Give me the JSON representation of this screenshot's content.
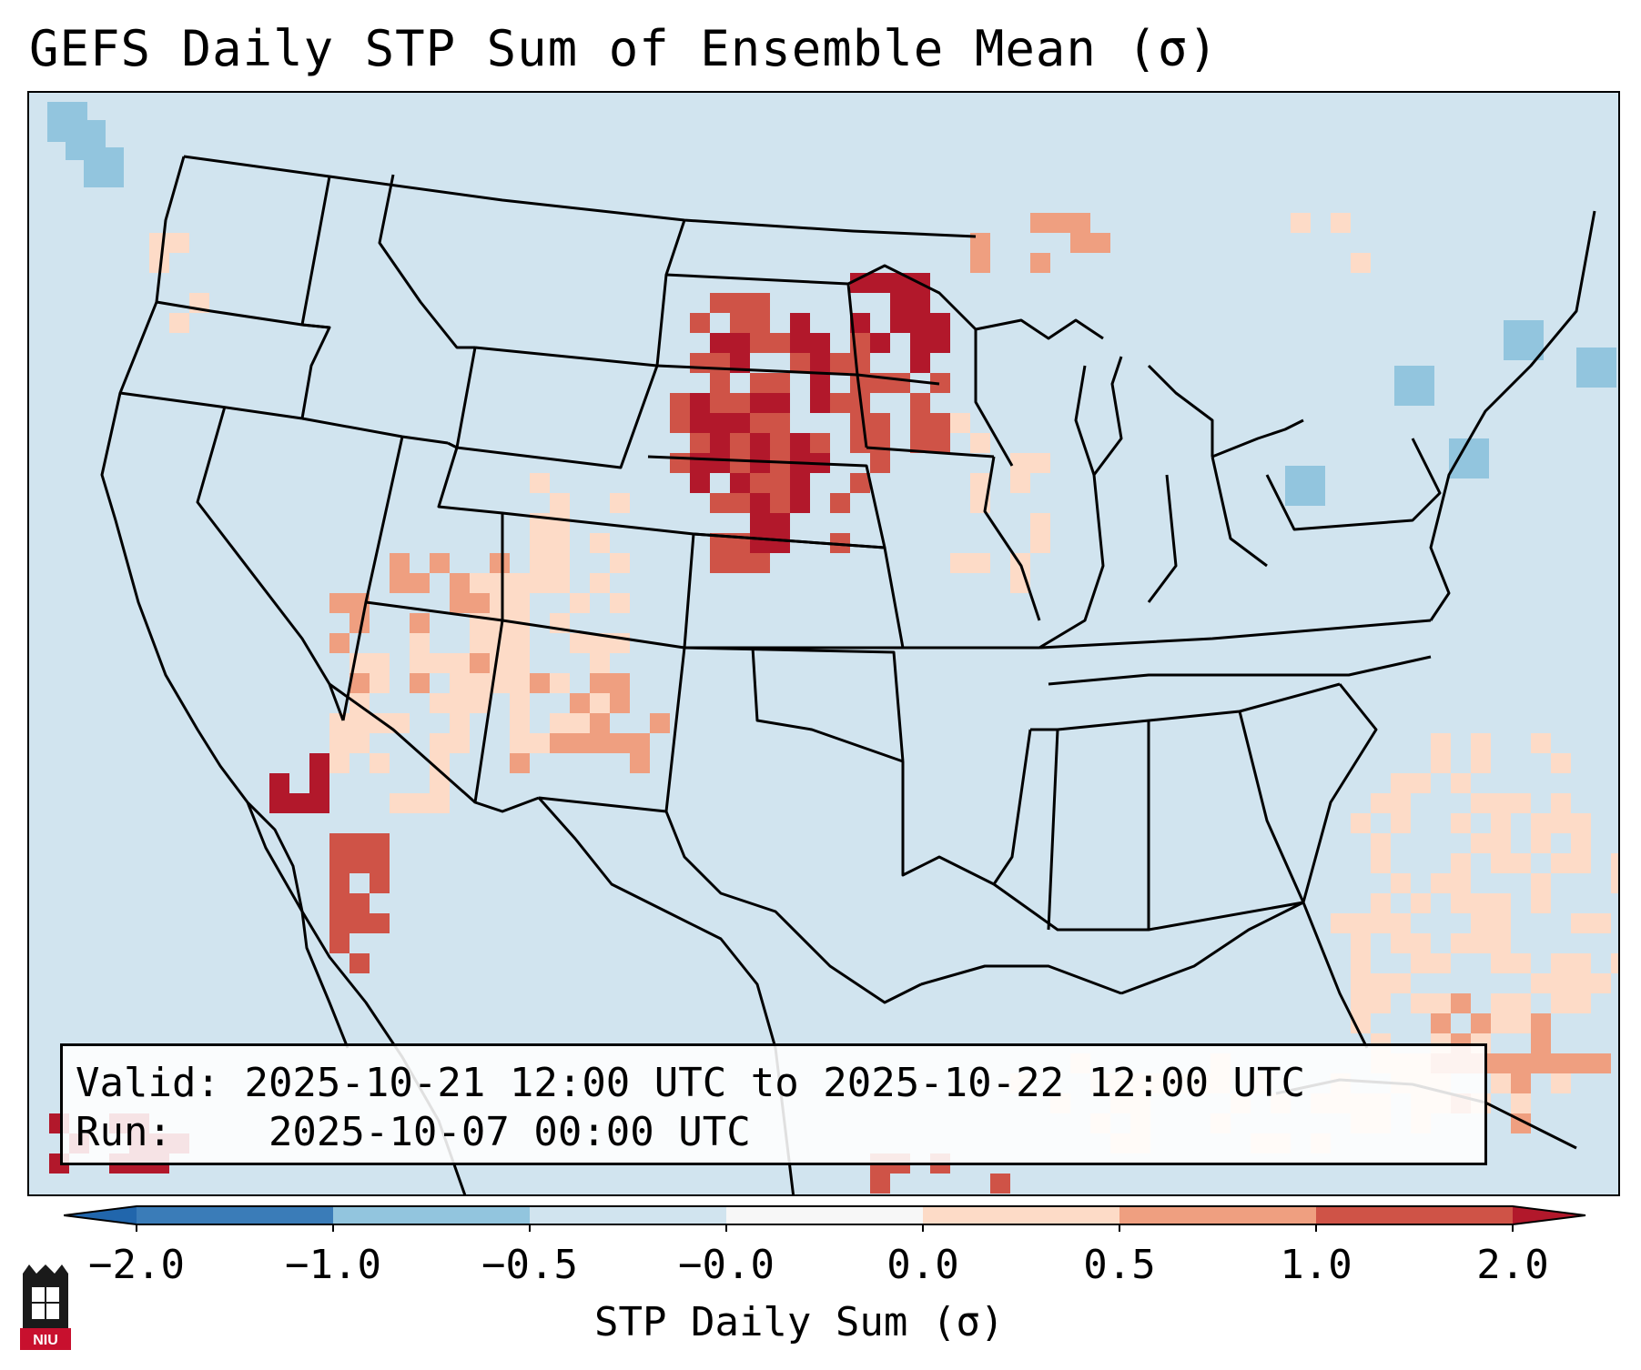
{
  "title": "GEFS Daily STP Sum of Ensemble Mean (σ)",
  "info": {
    "valid_label": "Valid:",
    "valid_value": "2025-10-21 12:00 UTC to 2025-10-22 12:00 UTC",
    "run_label": "Run:",
    "run_value": "2025-10-07 00:00 UTC"
  },
  "colorbar": {
    "title": "STP Daily Sum (σ)",
    "ticks": [
      "−2.0",
      "−1.0",
      "−0.5",
      "−0.0",
      "0.0",
      "0.5",
      "1.0",
      "2.0"
    ],
    "colors": [
      "#3a7cb8",
      "#92c5de",
      "#d1e4ef",
      "#f7f7f7",
      "#fddbc7",
      "#ef9f80",
      "#cf5347"
    ],
    "extend_low_color": "#2166ac",
    "extend_high_color": "#b2182b"
  },
  "map": {
    "background_color": "#d1e4ef",
    "anomaly_colors": {
      "light": "#fddbc7",
      "medium": "#ef9f80",
      "strong": "#cf5347",
      "extreme": "#b2182b",
      "neg_light": "#92c5de"
    }
  },
  "logo": {
    "text": "NIU"
  }
}
